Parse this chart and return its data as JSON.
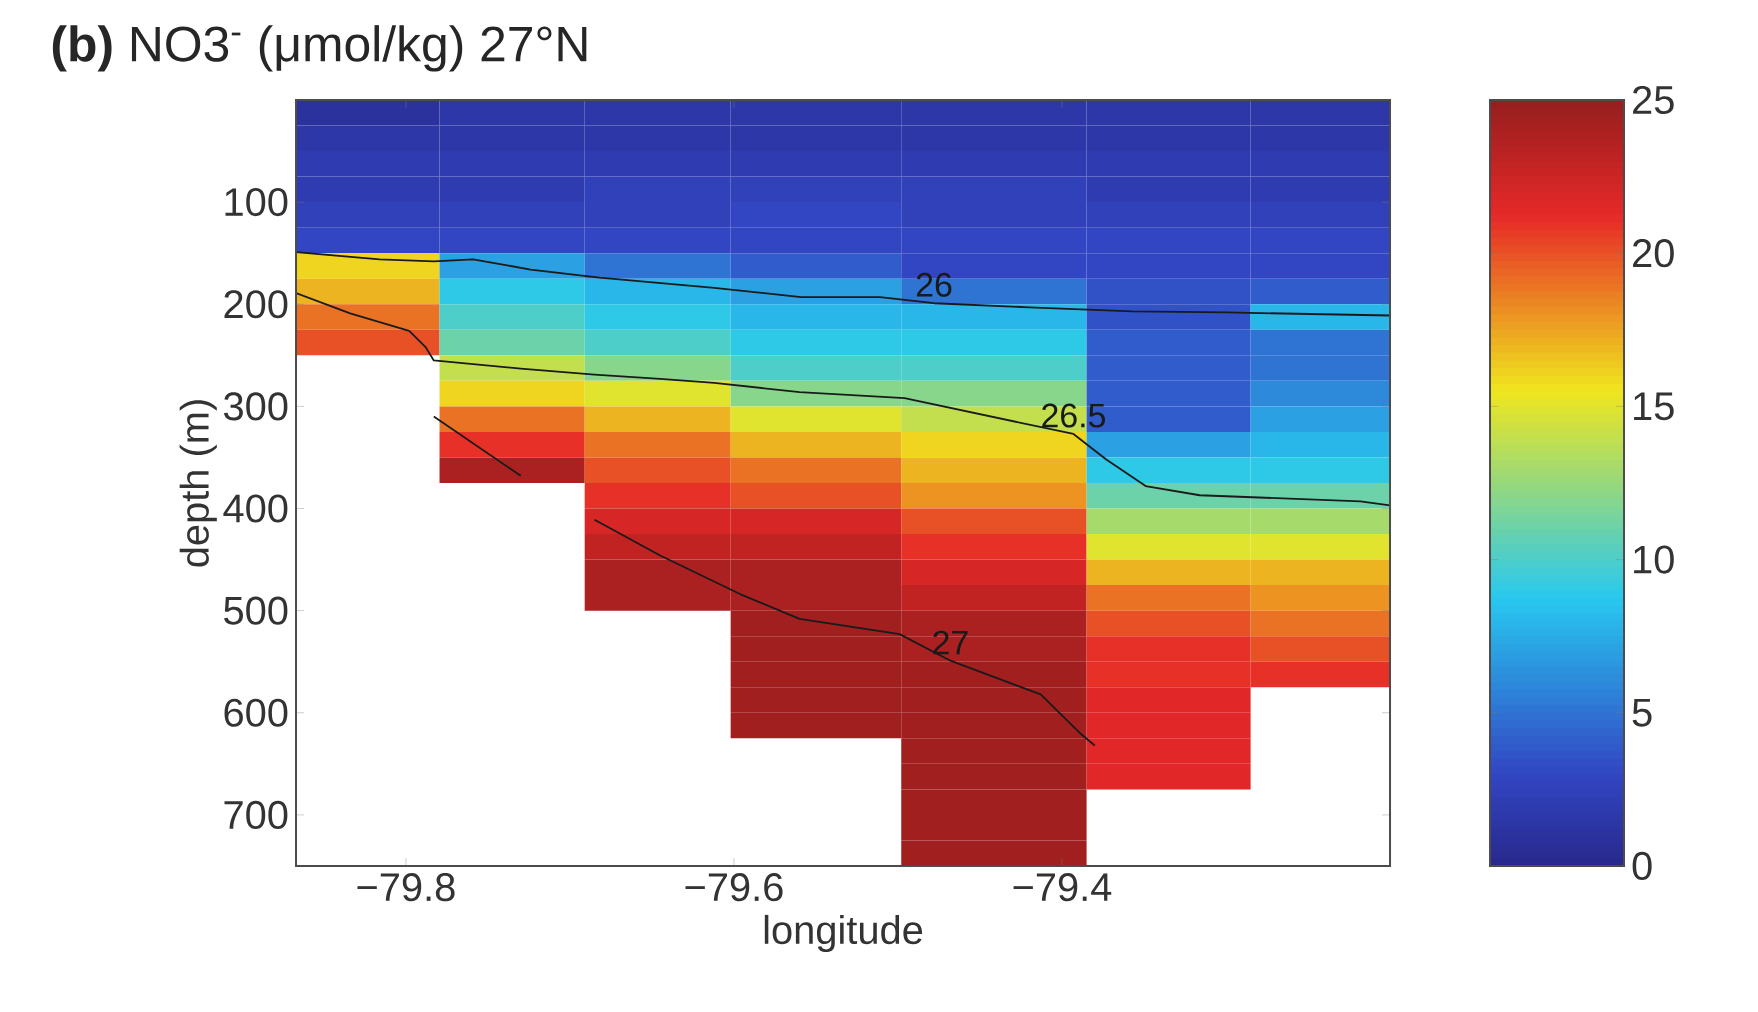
{
  "chart_data": {
    "type": "heatmap",
    "title": "**(b)**  NO3$^{-}$ (μmol/kg) 27°N",
    "xlabel": "longitude",
    "ylabel": "depth (m)",
    "x": [
      -79.825,
      -79.734,
      -79.648,
      -79.556,
      -79.44,
      -79.33,
      -79.24
    ],
    "y": [
      12.5,
      37.5,
      62.5,
      87.5,
      112.5,
      137.5,
      162.5,
      187.5,
      212.5,
      237.5,
      262.5,
      287.5,
      312.5,
      337.5,
      362.5,
      387.5,
      412.5,
      437.5,
      462.5,
      487.5,
      512.5,
      537.5,
      562.5,
      587.5,
      612.5,
      637.5,
      662.5,
      687.5,
      712.5,
      737.5
    ],
    "xlim": [
      -79.867,
      -79.2
    ],
    "xticks": [
      {
        "value": -79.8,
        "label": "−79.8"
      },
      {
        "value": -79.6,
        "label": "−79.6"
      },
      {
        "value": -79.4,
        "label": "−79.4"
      }
    ],
    "ylim": [
      750,
      0
    ],
    "yticks": [
      100,
      200,
      300,
      400,
      500,
      600,
      700
    ],
    "clim": [
      0,
      25
    ],
    "cticks": [
      0,
      5,
      10,
      15,
      20,
      25
    ],
    "cells": [
      [
        1,
        1.5,
        1.5,
        1.5,
        1.5,
        1.5,
        1.5
      ],
      [
        1.5,
        1.5,
        1.5,
        1.5,
        1.5,
        1.5,
        1.5
      ],
      [
        2,
        2,
        2,
        2,
        2,
        2,
        2
      ],
      [
        2,
        2,
        2.5,
        2.5,
        2.5,
        2,
        2
      ],
      [
        2.5,
        2.5,
        2.5,
        3,
        2.5,
        2.5,
        2.5
      ],
      [
        3,
        3,
        3,
        3,
        3,
        3,
        3
      ],
      [
        16,
        7,
        5,
        4,
        3,
        3,
        3
      ],
      [
        17,
        9,
        8,
        7,
        5,
        3.5,
        4
      ],
      [
        19,
        10,
        9,
        8,
        8,
        3.5,
        8
      ],
      [
        20,
        11,
        10,
        9,
        9,
        4,
        5
      ],
      [
        null,
        14,
        12,
        10,
        10,
        4,
        5
      ],
      [
        null,
        16,
        15,
        12,
        12,
        4,
        6
      ],
      [
        null,
        19,
        17,
        15,
        14,
        4,
        7
      ],
      [
        null,
        21,
        19,
        17,
        16,
        7,
        8
      ],
      [
        null,
        24,
        20,
        19,
        17,
        9,
        9
      ],
      [
        null,
        null,
        21,
        20,
        18,
        11,
        11
      ],
      [
        null,
        null,
        22,
        22,
        20,
        13,
        13
      ],
      [
        null,
        null,
        23,
        23,
        21,
        15,
        15
      ],
      [
        null,
        null,
        24,
        24,
        22,
        17,
        17
      ],
      [
        null,
        null,
        24,
        24,
        23,
        19,
        18
      ],
      [
        null,
        null,
        null,
        24.5,
        24,
        20,
        19
      ],
      [
        null,
        null,
        null,
        24.5,
        24,
        21,
        20
      ],
      [
        null,
        null,
        null,
        24.5,
        24.5,
        21,
        21
      ],
      [
        null,
        null,
        null,
        24.5,
        24.5,
        21.5,
        null
      ],
      [
        null,
        null,
        null,
        24.5,
        24.5,
        21.5,
        null
      ],
      [
        null,
        null,
        null,
        null,
        24.5,
        21.5,
        null
      ],
      [
        null,
        null,
        null,
        null,
        24.5,
        21.5,
        null
      ],
      [
        null,
        null,
        null,
        null,
        24.5,
        null,
        null
      ],
      [
        null,
        null,
        null,
        null,
        24.5,
        null,
        null
      ],
      [
        null,
        null,
        null,
        null,
        24.5,
        null,
        null
      ]
    ],
    "series": [
      {
        "type": "line",
        "name": "26",
        "color": "#1a1a1a",
        "x": [
          -79.867,
          -79.816,
          -79.783,
          -79.759,
          -79.724,
          -79.682,
          -79.612,
          -79.559,
          -79.511,
          -79.478,
          -79.42,
          -79.357,
          -79.3,
          -79.2
        ],
        "values": [
          149,
          156,
          158,
          156,
          166,
          174,
          184,
          193,
          193,
          199,
          203,
          207,
          208,
          211
        ]
      },
      {
        "type": "line",
        "name": "26.5",
        "color": "#1a1a1a",
        "x": [
          -79.867,
          -79.834,
          -79.798,
          -79.788,
          -79.783,
          -79.73,
          -79.685,
          -79.645,
          -79.612,
          -79.56,
          -79.496,
          -79.393,
          -79.373,
          -79.349,
          -79.316,
          -79.218,
          -79.2
        ],
        "values": [
          189,
          209,
          226,
          242,
          255,
          263,
          269,
          273,
          277,
          286,
          292,
          327,
          352,
          378,
          387,
          393,
          397
        ]
      },
      {
        "type": "line",
        "name": "27",
        "color": "#1a1a1a",
        "x": [
          -79.783,
          -79.73,
          -79.71,
          -79.685,
          -79.645,
          -79.596,
          -79.56,
          -79.499,
          -79.468,
          -79.413,
          -79.389,
          -79.38
        ],
        "values": [
          310,
          368,
          null,
          411,
          446,
          484,
          508,
          523,
          549,
          582,
          620,
          632
        ]
      }
    ]
  }
}
